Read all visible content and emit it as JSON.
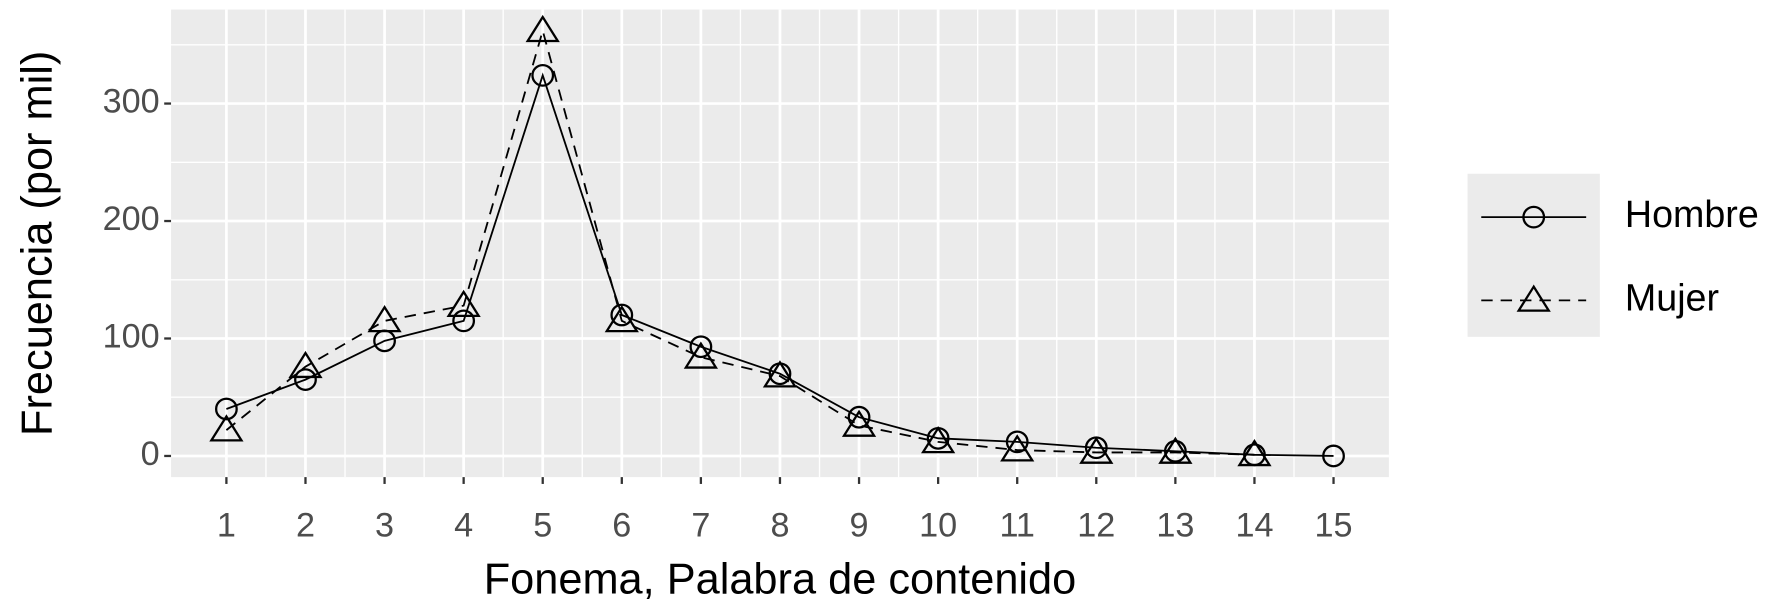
{
  "chart_data": {
    "type": "line",
    "x_label": "Fonema, Palabra de contenido",
    "y_label": "Frecuencia (por mil)",
    "x": [
      1,
      2,
      3,
      4,
      5,
      6,
      7,
      8,
      9,
      10,
      11,
      12,
      13,
      14,
      15
    ],
    "series": [
      {
        "name": "Hombre",
        "color": "#000000",
        "linestyle": "solid",
        "marker": "circle",
        "values": [
          40,
          65,
          98,
          115,
          324,
          120,
          93,
          70,
          33,
          15,
          12,
          7,
          4,
          1,
          0
        ]
      },
      {
        "name": "Mujer",
        "color": "#000000",
        "linestyle": "dashed",
        "marker": "triangle",
        "values": [
          22,
          76,
          115,
          128,
          362,
          115,
          84,
          68,
          26,
          12,
          5,
          3,
          3,
          1,
          null
        ]
      }
    ],
    "xlim": [
      0.3,
      15.7
    ],
    "ylim": [
      -18,
      380
    ],
    "xticks": [
      1,
      2,
      3,
      4,
      5,
      6,
      7,
      8,
      9,
      10,
      11,
      12,
      13,
      14,
      15
    ],
    "yticks": [
      0,
      100,
      200,
      300
    ],
    "x_minor_ticks": [
      1.5,
      2.5,
      3.5,
      4.5,
      5.5,
      6.5,
      7.5,
      8.5,
      9.5,
      10.5,
      11.5,
      12.5,
      13.5,
      14.5
    ],
    "y_minor_ticks": [
      50,
      150,
      250,
      350
    ],
    "grid": true,
    "legend": "right"
  }
}
